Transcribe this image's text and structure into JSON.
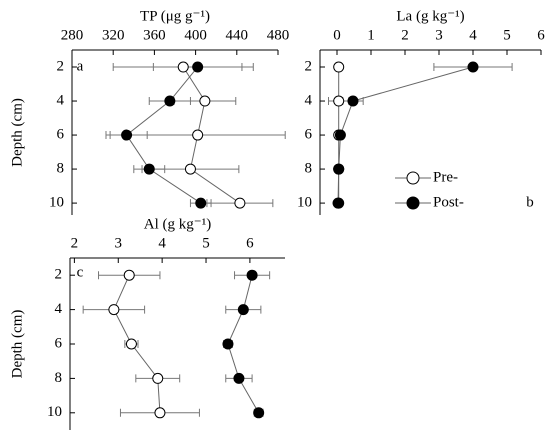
{
  "chart_data": [
    {
      "type": "scatter-line",
      "title": "TP (μg g⁻¹)",
      "y_label": "Depth (cm)",
      "label": "a",
      "xlim": [
        280,
        480
      ],
      "xticks": [
        280,
        320,
        360,
        400,
        440,
        480
      ],
      "ylim": [
        1,
        10.7
      ],
      "yticks": [
        2,
        4,
        6,
        8,
        10
      ],
      "y": [
        2,
        4,
        6,
        8,
        10
      ],
      "series": [
        {
          "color": "#ffffff",
          "values": [
            388,
            409,
            402,
            395,
            443
          ],
          "xerr": [
            68,
            30,
            85,
            47,
            32
          ]
        },
        {
          "color": "#000000",
          "values": [
            402,
            375,
            333,
            355,
            405
          ],
          "xerr": [
            43,
            20,
            20,
            15,
            10
          ]
        }
      ]
    },
    {
      "type": "scatter-line",
      "title": "La (g kg⁻¹)",
      "label": "b",
      "legend": "right",
      "xlim": [
        -0.5,
        6
      ],
      "xticks": [
        0,
        1,
        2,
        3,
        4,
        5,
        6
      ],
      "ylim": [
        1,
        10.7
      ],
      "yticks": [
        2,
        4,
        6,
        8,
        10
      ],
      "y": [
        2,
        4,
        6,
        8,
        10
      ],
      "series": [
        {
          "name": "Pre-",
          "color": "#ffffff",
          "values": [
            0.05,
            0.05,
            0.05,
            0.05,
            0.05
          ],
          "xerr": [
            0.05,
            0.3,
            0.05,
            0.03,
            0.03
          ]
        },
        {
          "name": "Post-",
          "color": "#000000",
          "values": [
            4.0,
            0.47,
            0.1,
            0.05,
            0.03
          ],
          "xerr": [
            1.15,
            0.3,
            0.05,
            0.03,
            0.03
          ]
        }
      ]
    },
    {
      "type": "scatter-line",
      "title": "Al (g kg⁻¹)",
      "y_label": "Depth (cm)",
      "label": "c",
      "xlim": [
        1.9,
        6.8
      ],
      "xticks": [
        2,
        3,
        4,
        5,
        6
      ],
      "ylim": [
        1,
        11
      ],
      "yticks": [
        2,
        4,
        6,
        8,
        10
      ],
      "y": [
        2,
        4,
        6,
        8,
        10
      ],
      "series": [
        {
          "color": "#ffffff",
          "values": [
            3.25,
            2.9,
            3.3,
            3.9,
            3.95
          ],
          "xerr": [
            0.7,
            0.7,
            0.15,
            0.5,
            0.9
          ]
        },
        {
          "color": "#000000",
          "values": [
            6.05,
            5.85,
            5.5,
            5.75,
            6.2
          ],
          "xerr": [
            0.4,
            0.4,
            0.1,
            0.3,
            0.1
          ]
        }
      ]
    }
  ]
}
